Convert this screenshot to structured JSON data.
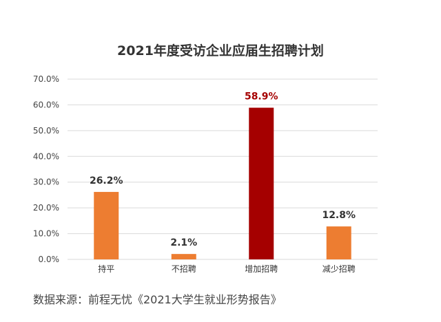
{
  "chart_data": {
    "type": "bar",
    "title": "2021年度受访企业应届生招聘计划",
    "categories": [
      "持平",
      "不招聘",
      "增加招聘",
      "减少招聘"
    ],
    "values": [
      26.2,
      2.1,
      58.9,
      12.8
    ],
    "value_labels": [
      "26.2%",
      "2.1%",
      "58.9%",
      "12.8%"
    ],
    "ylim": [
      0,
      70
    ],
    "yticks": [
      0,
      10,
      20,
      30,
      40,
      50,
      60,
      70
    ],
    "ytick_labels": [
      "0.0%",
      "10.0%",
      "20.0%",
      "30.0%",
      "40.0%",
      "50.0%",
      "60.0%",
      "70.0%"
    ],
    "grid": true,
    "legend": "none",
    "colors": {
      "bar": "#ED7D31",
      "highlight_bar": "#A50000",
      "highlight_label": "#A50000",
      "label": "#333333",
      "grid": "#D9D9D9"
    },
    "highlight_index": 2
  },
  "source_note": "数据来源：前程无忧《2021大学生就业形势报告》"
}
